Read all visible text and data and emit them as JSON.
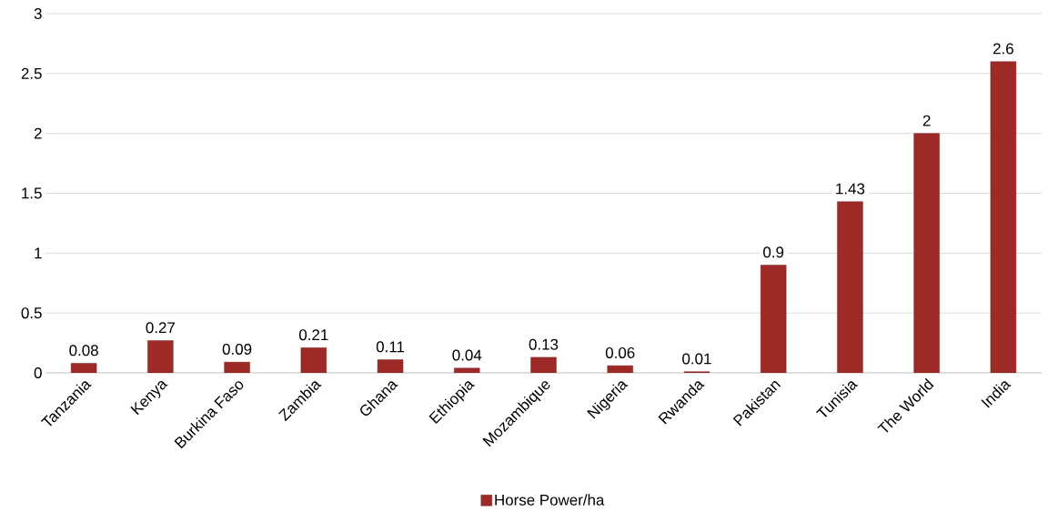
{
  "chart_data": {
    "type": "bar",
    "categories": [
      "Tanzania",
      "Kenya",
      "Burkina Faso",
      "Zambia",
      "Ghana",
      "Ethiopia",
      "Mozambique",
      "Nigeria",
      "Rwanda",
      "Pakistan",
      "Tunisia",
      "The World",
      "India"
    ],
    "series": [
      {
        "name": "Horse Power/ha",
        "color": "#9e2a28",
        "values": [
          0.08,
          0.27,
          0.09,
          0.21,
          0.11,
          0.04,
          0.13,
          0.06,
          0.01,
          0.9,
          1.43,
          2,
          2.6
        ]
      }
    ],
    "ylim": [
      0,
      3
    ],
    "yticks": [
      0,
      0.5,
      1,
      1.5,
      2,
      2.5,
      3
    ],
    "grid": "y",
    "legend": "bottom",
    "data_labels": true
  }
}
